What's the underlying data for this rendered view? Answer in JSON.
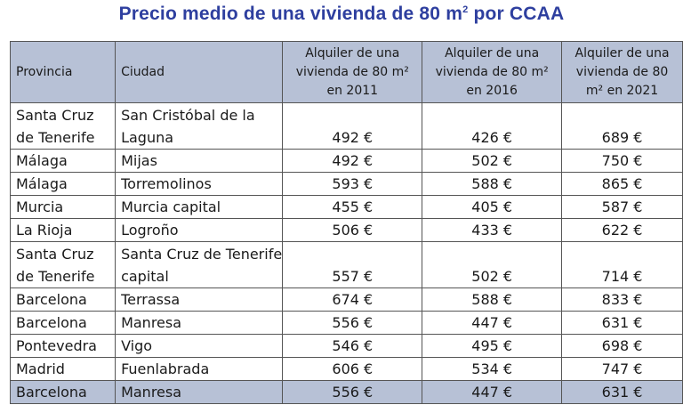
{
  "title": {
    "text": "Precio medio de una vivienda de 80 m",
    "sup": "2",
    "suffix": " por CCAA"
  },
  "headers": [
    "Provincia",
    "Ciudad",
    "Alquiler de una vivienda de 80 m² en 2011",
    "Alquiler de una vivienda de 80 m² en 2016",
    "Alquiler de una vivienda de 80 m² en 2021"
  ],
  "rows": [
    {
      "provincia": "Santa Cruz de Tenerife",
      "ciudad": "San Cristóbal de la Laguna",
      "y2011": "492 €",
      "y2016": "426 €",
      "y2021": "689 €"
    },
    {
      "provincia": "Málaga",
      "ciudad": "Mijas",
      "y2011": "492 €",
      "y2016": "502 €",
      "y2021": "750 €"
    },
    {
      "provincia": "Málaga",
      "ciudad": "Torremolinos",
      "y2011": "593 €",
      "y2016": "588 €",
      "y2021": "865 €"
    },
    {
      "provincia": "Murcia",
      "ciudad": "Murcia capital",
      "y2011": "455 €",
      "y2016": "405 €",
      "y2021": "587 €"
    },
    {
      "provincia": "La Rioja",
      "ciudad": "Logroño",
      "y2011": "506 €",
      "y2016": "433 €",
      "y2021": "622 €"
    },
    {
      "provincia": "Santa Cruz de Tenerife",
      "ciudad": "Santa Cruz de Tenerife capital",
      "y2011": "557 €",
      "y2016": "502 €",
      "y2021": "714 €"
    },
    {
      "provincia": "Barcelona",
      "ciudad": "Terrassa",
      "y2011": "674 €",
      "y2016": "588 €",
      "y2021": "833 €"
    },
    {
      "provincia": "Barcelona",
      "ciudad": "Manresa",
      "y2011": "556 €",
      "y2016": "447 €",
      "y2021": "631 €"
    },
    {
      "provincia": "Pontevedra",
      "ciudad": "Vigo",
      "y2011": "546 €",
      "y2016": "495 €",
      "y2021": "698 €"
    },
    {
      "provincia": "Madrid",
      "ciudad": "Fuenlabrada",
      "y2011": "606 €",
      "y2016": "534 €",
      "y2021": "747 €"
    },
    {
      "provincia": "Barcelona",
      "ciudad": "Manresa",
      "y2011": "556 €",
      "y2016": "447 €",
      "y2021": "631 €"
    }
  ],
  "colors": {
    "title": "#2e3f9f",
    "header_bg": "#b7c1d6",
    "highlight_row_bg": "#b7c1d6"
  }
}
